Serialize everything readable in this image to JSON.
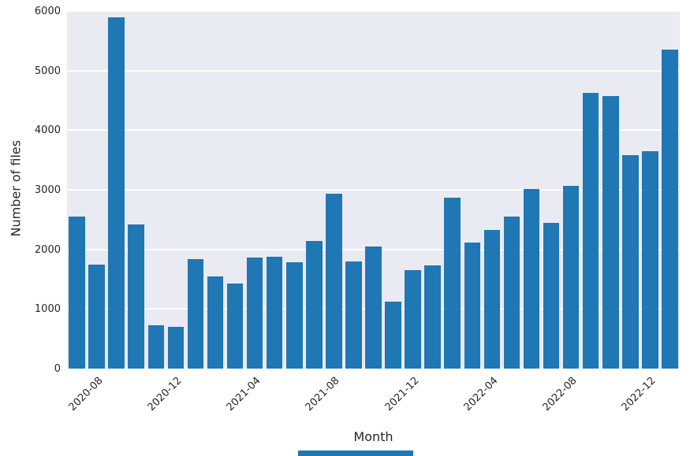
{
  "chart_data": {
    "type": "bar",
    "title": "",
    "xlabel": "Month",
    "ylabel": "Number of files",
    "x": [
      "2020-07",
      "2020-08",
      "2020-09",
      "2020-10",
      "2020-11",
      "2020-12",
      "2021-01",
      "2021-02",
      "2021-03",
      "2021-04",
      "2021-05",
      "2021-06",
      "2021-07",
      "2021-08",
      "2021-09",
      "2021-10",
      "2021-11",
      "2021-12",
      "2022-01",
      "2022-02",
      "2022-03",
      "2022-04",
      "2022-05",
      "2022-06",
      "2022-07",
      "2022-08",
      "2022-09",
      "2022-10",
      "2022-11",
      "2022-12",
      "2023-01"
    ],
    "values": [
      2550,
      1750,
      5900,
      2420,
      730,
      700,
      1840,
      1550,
      1430,
      1860,
      1880,
      1780,
      2140,
      2930,
      1800,
      2050,
      1130,
      1650,
      1730,
      2870,
      2120,
      2330,
      2550,
      3010,
      2450,
      3060,
      4630,
      4570,
      3580,
      3650,
      5350
    ],
    "ylim": [
      0,
      6000
    ],
    "yticks": [
      0,
      1000,
      2000,
      3000,
      4000,
      5000,
      6000
    ],
    "xtick_labels": [
      "2020-08",
      "2020-12",
      "2021-04",
      "2021-08",
      "2021-12",
      "2022-04",
      "2022-08",
      "2022-12"
    ],
    "grid": true,
    "legend": false,
    "bar_color": "#1f77b4",
    "plot_bg": "#eaeaf2",
    "grid_color": "#ffffff",
    "tick_color": "#262626"
  },
  "misc": {
    "bottom_strip_color": "#1f77b4"
  }
}
